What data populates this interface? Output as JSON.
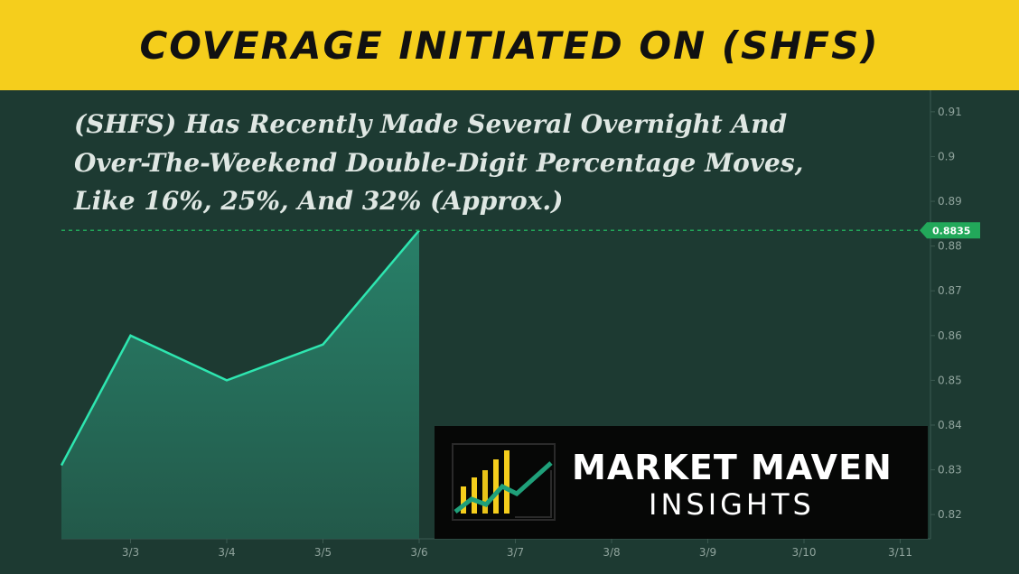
{
  "banner": {
    "title": "COVERAGE INITIATED ON (SHFS)"
  },
  "headline": {
    "lines": [
      "(SHFS) Has Recently Made Several Overnight And",
      "Over-The-Weekend Double-Digit Percentage Moves,",
      "Like 16%, 25%, And 32% (Approx.)"
    ]
  },
  "logo": {
    "line1": "MARKET MAVEN",
    "line2": "INSIGHTS"
  },
  "colors": {
    "banner": "#f5ce1c",
    "background": "#1d3a32",
    "line": "#2ee6b0",
    "price_tag": "#22a85a"
  },
  "chart_data": {
    "type": "area",
    "x_labels": [
      "3/3",
      "3/4",
      "3/5",
      "3/6",
      "3/7",
      "3/8",
      "3/9",
      "3/10",
      "3/11"
    ],
    "series": [
      {
        "x": [
          "3/2",
          "3/3",
          "3/4",
          "3/5",
          "3/6"
        ],
        "values": [
          0.831,
          0.86,
          0.85,
          0.858,
          0.8835
        ]
      }
    ],
    "y_ticks": [
      0.82,
      0.83,
      0.84,
      0.85,
      0.86,
      0.87,
      0.88,
      0.89,
      0.9,
      0.91
    ],
    "ylim": [
      0.816,
      0.913
    ],
    "last_price": 0.8835,
    "last_price_label": "0.8835",
    "grid": false,
    "title": "",
    "xlabel": "",
    "ylabel": ""
  }
}
